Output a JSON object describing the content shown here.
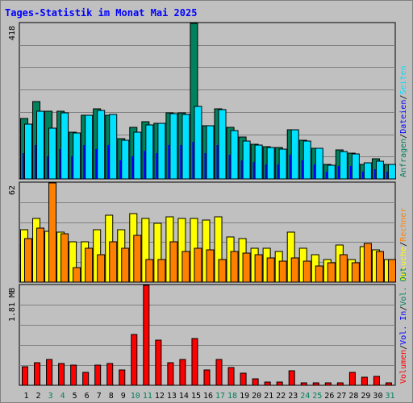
{
  "title": "Tages-Statistik im Monat Mai 2025",
  "colors": {
    "title": "#0000ff",
    "hits": "#00805c",
    "files": "#00e0ff",
    "pages": "#00c0ff",
    "visits": "#ffff00",
    "sites": "#ff8000",
    "volume": "#ff0000",
    "vol_in": "#0000ff",
    "vol_out": "#00805c",
    "weekend_label": "#00805c",
    "panel_bg": "#c0c0c0",
    "grid": "#808080"
  },
  "chart_data": [
    {
      "type": "bar",
      "panel": "top",
      "ymax_label": "418",
      "ymax": 418,
      "legend": [
        {
          "text": "Anfragen",
          "color": "#00805c"
        },
        {
          "text": "/",
          "color": "#000000"
        },
        {
          "text": "Dateien",
          "color": "#0000ff"
        },
        {
          "text": "/",
          "color": "#000000"
        },
        {
          "text": "Seiten",
          "color": "#00e0ff"
        }
      ],
      "categories": [
        "1",
        "2",
        "3",
        "4",
        "5",
        "6",
        "7",
        "8",
        "9",
        "10",
        "11",
        "12",
        "13",
        "14",
        "15",
        "16",
        "17",
        "18",
        "19",
        "20",
        "21",
        "22",
        "23",
        "24",
        "25",
        "26",
        "27",
        "28",
        "29",
        "30",
        "31"
      ],
      "series": [
        {
          "name": "Anfragen",
          "color": "#00805c",
          "values": [
            162,
            208,
            183,
            181,
            126,
            172,
            189,
            171,
            109,
            139,
            154,
            149,
            178,
            177,
            418,
            143,
            188,
            139,
            112,
            93,
            87,
            84,
            133,
            103,
            82,
            39,
            77,
            69,
            40,
            54,
            40
          ]
        },
        {
          "name": "Dateien",
          "color": "#00e0ff",
          "values": [
            148,
            182,
            137,
            177,
            124,
            172,
            185,
            173,
            103,
            126,
            146,
            149,
            175,
            174,
            196,
            143,
            187,
            130,
            102,
            92,
            85,
            80,
            133,
            101,
            82,
            37,
            74,
            67,
            44,
            47,
            38
          ]
        },
        {
          "name": "Seiten",
          "color": "#0000ff",
          "values": [
            70,
            90,
            60,
            80,
            60,
            90,
            80,
            90,
            50,
            60,
            75,
            70,
            90,
            90,
            100,
            70,
            90,
            65,
            50,
            45,
            40,
            40,
            65,
            50,
            40,
            20,
            35,
            35,
            20,
            25,
            20
          ]
        }
      ]
    },
    {
      "type": "bar",
      "panel": "middle",
      "ymax_label": "62",
      "ymax": 62,
      "legend": [
        {
          "text": "Besuche",
          "color": "#ffff00"
        },
        {
          "text": "/",
          "color": "#000000"
        },
        {
          "text": "Rechner",
          "color": "#ff8000"
        }
      ],
      "categories": [
        "1",
        "2",
        "3",
        "4",
        "5",
        "6",
        "7",
        "8",
        "9",
        "10",
        "11",
        "12",
        "13",
        "14",
        "15",
        "16",
        "17",
        "18",
        "19",
        "20",
        "21",
        "22",
        "23",
        "24",
        "25",
        "26",
        "27",
        "28",
        "29",
        "30",
        "31"
      ],
      "series": [
        {
          "name": "Besuche",
          "color": "#ffff00",
          "values": [
            33,
            40,
            32,
            31,
            25,
            25,
            33,
            42,
            33,
            43,
            40,
            37,
            41,
            40,
            40,
            39,
            41,
            28,
            27,
            21,
            21,
            19,
            31,
            21,
            17,
            14,
            23,
            14,
            22,
            20,
            14
          ]
        },
        {
          "name": "Rechner",
          "color": "#ff8000",
          "values": [
            27,
            34,
            62,
            30,
            9,
            21,
            17,
            25,
            21,
            29,
            14,
            14,
            25,
            19,
            21,
            20,
            14,
            19,
            18,
            17,
            15,
            13,
            15,
            13,
            10,
            12,
            17,
            12,
            24,
            19,
            14
          ]
        }
      ]
    },
    {
      "type": "bar",
      "panel": "bottom",
      "ymax_label": "1.81 MB",
      "ymax": 1.81,
      "legend": [
        {
          "text": "Volumen",
          "color": "#ff0000"
        },
        {
          "text": "/",
          "color": "#000000"
        },
        {
          "text": "Vol. In",
          "color": "#0000ff"
        },
        {
          "text": "/",
          "color": "#000000"
        },
        {
          "text": "Vol. Out",
          "color": "#00805c"
        }
      ],
      "categories": [
        "1",
        "2",
        "3",
        "4",
        "5",
        "6",
        "7",
        "8",
        "9",
        "10",
        "11",
        "12",
        "13",
        "14",
        "15",
        "16",
        "17",
        "18",
        "19",
        "20",
        "21",
        "22",
        "23",
        "24",
        "25",
        "26",
        "27",
        "28",
        "29",
        "30",
        "31"
      ],
      "series": [
        {
          "name": "Volumen",
          "color": "#ff0000",
          "values": [
            0.33,
            0.41,
            0.46,
            0.39,
            0.36,
            0.23,
            0.37,
            0.39,
            0.28,
            0.92,
            1.81,
            0.82,
            0.41,
            0.46,
            0.84,
            0.28,
            0.46,
            0.32,
            0.22,
            0.12,
            0.06,
            0.06,
            0.26,
            0.05,
            0.04,
            0.04,
            0.05,
            0.24,
            0.15,
            0.16,
            0.05
          ]
        }
      ]
    }
  ],
  "x_labels": [
    {
      "text": "1",
      "weekend": false
    },
    {
      "text": "2",
      "weekend": false
    },
    {
      "text": "3",
      "weekend": true
    },
    {
      "text": "4",
      "weekend": true
    },
    {
      "text": "5",
      "weekend": false
    },
    {
      "text": "6",
      "weekend": false
    },
    {
      "text": "7",
      "weekend": false
    },
    {
      "text": "8",
      "weekend": false
    },
    {
      "text": "9",
      "weekend": false
    },
    {
      "text": "10",
      "weekend": true
    },
    {
      "text": "11",
      "weekend": true
    },
    {
      "text": "12",
      "weekend": false
    },
    {
      "text": "13",
      "weekend": false
    },
    {
      "text": "14",
      "weekend": false
    },
    {
      "text": "15",
      "weekend": false
    },
    {
      "text": "16",
      "weekend": false
    },
    {
      "text": "17",
      "weekend": true
    },
    {
      "text": "18",
      "weekend": true
    },
    {
      "text": "19",
      "weekend": false
    },
    {
      "text": "20",
      "weekend": false
    },
    {
      "text": "21",
      "weekend": false
    },
    {
      "text": "22",
      "weekend": false
    },
    {
      "text": "23",
      "weekend": false
    },
    {
      "text": "24",
      "weekend": true
    },
    {
      "text": "25",
      "weekend": true
    },
    {
      "text": "26",
      "weekend": false
    },
    {
      "text": "27",
      "weekend": false
    },
    {
      "text": "28",
      "weekend": false
    },
    {
      "text": "29",
      "weekend": false
    },
    {
      "text": "30",
      "weekend": false
    },
    {
      "text": "31",
      "weekend": true
    }
  ]
}
